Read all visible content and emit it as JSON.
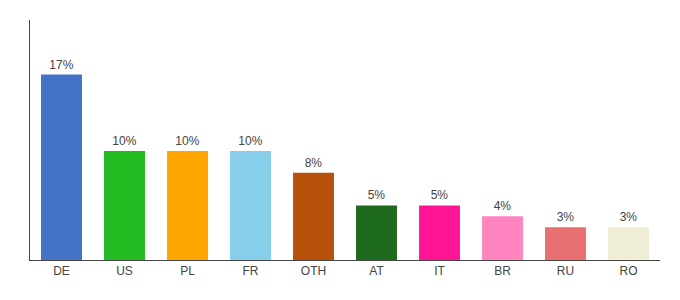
{
  "chart_data": {
    "type": "bar",
    "categories": [
      "DE",
      "US",
      "PL",
      "FR",
      "OTH",
      "AT",
      "IT",
      "BR",
      "RU",
      "RO"
    ],
    "values": [
      17,
      10,
      10,
      10,
      8,
      5,
      5,
      4,
      3,
      3
    ],
    "value_labels": [
      "17%",
      "10%",
      "10%",
      "10%",
      "8%",
      "5%",
      "5%",
      "4%",
      "3%",
      "3%"
    ],
    "colors": [
      "#4472C4",
      "#22BB22",
      "#FFA500",
      "#87CEEB",
      "#B8520A",
      "#1E6B1E",
      "#FF1493",
      "#FF85C0",
      "#E87070",
      "#F0EDD5"
    ],
    "ylim": [
      0,
      22
    ],
    "data_labels": true,
    "tick_labels": "x",
    "grid": false
  }
}
